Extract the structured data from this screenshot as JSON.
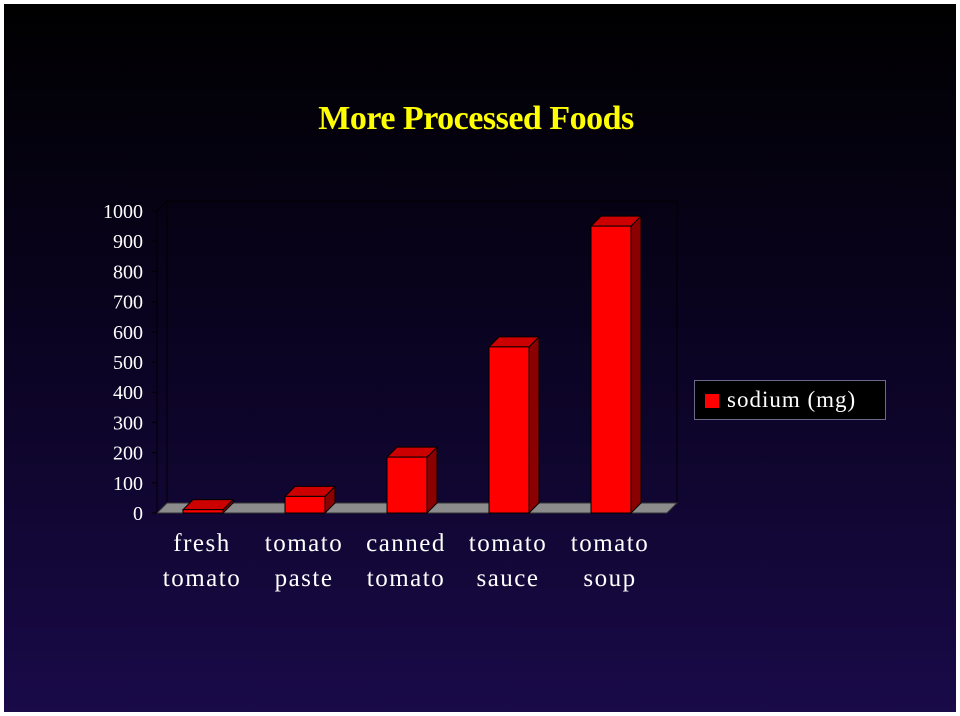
{
  "colors": {
    "bar_front": "#ff0000",
    "bar_side": "#8b0000",
    "bar_top": "#cc0000",
    "title": "#ffff00",
    "text": "#ffffff",
    "floor": "#8c8c8c"
  },
  "chart_data": {
    "type": "bar",
    "title": "More Processed Foods",
    "categories": [
      [
        "fresh",
        "tomato"
      ],
      [
        "tomato",
        "paste"
      ],
      [
        "canned",
        "tomato"
      ],
      [
        "tomato",
        "sauce"
      ],
      [
        "tomato",
        "soup"
      ]
    ],
    "series": [
      {
        "name": "sodium (mg)",
        "values": [
          11,
          55,
          185,
          550,
          950
        ]
      }
    ],
    "ylim": [
      0,
      1000
    ],
    "yticks": [
      "1000",
      "900",
      "800",
      "700",
      "600",
      "500",
      "400",
      "300",
      "200",
      "100",
      "0"
    ],
    "three_d": true,
    "grid": false,
    "legend_position": "right"
  }
}
